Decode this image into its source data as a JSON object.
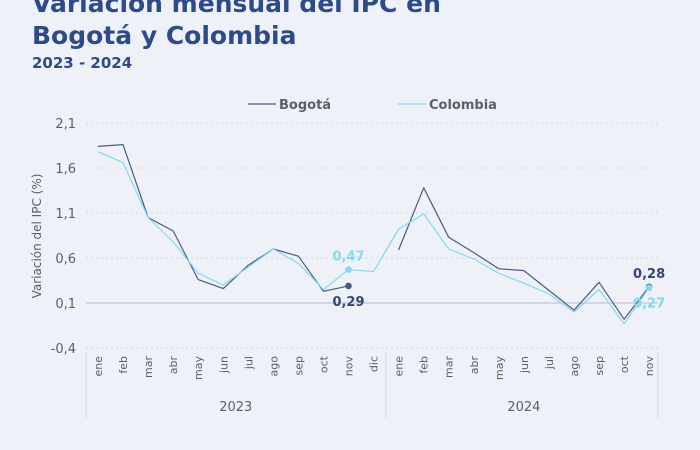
{
  "title_lines": [
    "Variación mensual del IPC en",
    "Bogotá y Colombia"
  ],
  "subtitle": "2023 - 2024",
  "colors": {
    "title": "#2d4a8b",
    "bogota": "#4c5a80",
    "colombia": "#7fdaf2",
    "grid": "#d3d7df",
    "text": "#5a5f6a",
    "background": "#eef1f7"
  },
  "chart_data": {
    "type": "line",
    "title": "Variación mensual del IPC en Bogotá y Colombia",
    "subtitle": "2023 - 2024",
    "ylabel": "Variación del IPC (%)",
    "xlabel": "",
    "ylim": [
      -0.4,
      2.1
    ],
    "yticks": [
      "2,1",
      "1,6",
      "1,1",
      "0,6",
      "0,1",
      "-0,4"
    ],
    "ytick_values": [
      2.1,
      1.6,
      1.1,
      0.6,
      0.1,
      -0.4
    ],
    "grid": "horizontal dotted",
    "legend_position": "top-center",
    "categories": [
      "ene",
      "feb",
      "mar",
      "abr",
      "may",
      "jun",
      "jul",
      "ago",
      "sep",
      "oct",
      "nov",
      "dic",
      "ene",
      "feb",
      "mar",
      "abr",
      "may",
      "jun",
      "jul",
      "ago",
      "sep",
      "oct",
      "nov"
    ],
    "years": [
      {
        "label": "2023",
        "start": 0,
        "end": 11
      },
      {
        "label": "2024",
        "start": 12,
        "end": 22
      }
    ],
    "series": [
      {
        "name": "Bogotá",
        "color": "#4c5a80",
        "values": [
          1.84,
          1.86,
          1.05,
          0.9,
          0.36,
          0.26,
          0.52,
          0.7,
          0.62,
          0.23,
          0.29,
          null,
          0.69,
          1.38,
          0.83,
          0.66,
          0.48,
          0.46,
          0.24,
          0.02,
          0.33,
          -0.08,
          0.28
        ]
      },
      {
        "name": "Colombia",
        "color": "#7fdaf2",
        "values": [
          1.78,
          1.66,
          1.05,
          0.78,
          0.43,
          0.3,
          0.5,
          0.7,
          0.54,
          0.25,
          0.47,
          0.45,
          0.92,
          1.09,
          0.7,
          0.59,
          0.43,
          0.32,
          0.2,
          0.0,
          0.25,
          -0.13,
          0.27
        ]
      }
    ],
    "annotations": [
      {
        "text": "0,47",
        "series": "Colombia",
        "index": 10,
        "place": "above",
        "color": "#7fdaf2"
      },
      {
        "text": "0,29",
        "series": "Bogotá",
        "index": 10,
        "place": "below",
        "color": "#33457a"
      },
      {
        "text": "0,28",
        "series": "Bogotá",
        "index": 22,
        "place": "above",
        "color": "#33457a"
      },
      {
        "text": "0,27",
        "series": "Colombia",
        "index": 22,
        "place": "below",
        "color": "#7fdaf2"
      }
    ]
  }
}
